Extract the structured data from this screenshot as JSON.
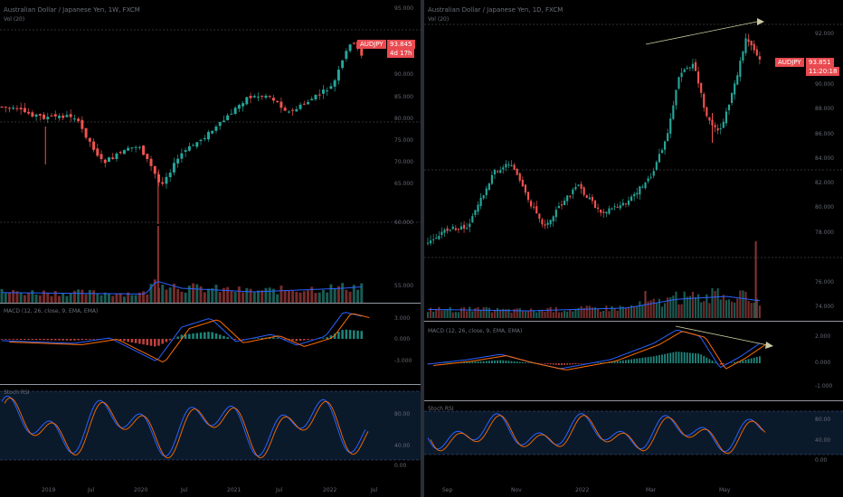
{
  "left": {
    "title": "Australian Dollar / Japanese Yen, 1W, FXCM",
    "subtitle": "Vol (20)",
    "indicators": {
      "macd": "MACD (12, 26, close, 9, EMA, EMA)",
      "stoch": "Stoch RSI"
    },
    "badge": {
      "symbol": "AUDJPY",
      "price": "93.845",
      "countdown": "4d 17h"
    },
    "price_scale": [
      "95.000",
      "90.000",
      "85.000",
      "80.000",
      "75.000",
      "70.000",
      "65.000",
      "60.000",
      "55.000"
    ],
    "time_scale": [
      "2019",
      "Jul",
      "2020",
      "Jul",
      "2021",
      "Jul",
      "2022",
      "Jul"
    ],
    "macd_scale": [
      "3.000",
      "0.000",
      "-3.000"
    ],
    "stoch_scale": [
      "80.00",
      "40.00",
      "0.00"
    ]
  },
  "right": {
    "title": "Australian Dollar / Japanese Yen, 1D, FXCM",
    "subtitle": "Vol (20)",
    "indicators": {
      "macd": "MACD (12, 26, close, 9, EMA, EMA)",
      "stoch": "Stoch RSI"
    },
    "badge": {
      "symbol": "AUDJPY",
      "price": "93.851",
      "countdown": "11:20:18"
    },
    "price_scale": [
      "92.000",
      "90.000",
      "88.000",
      "86.000",
      "84.000",
      "82.000",
      "80.000",
      "78.000",
      "76.000",
      "74.000"
    ],
    "time_scale": [
      "Sep",
      "Nov",
      "2022",
      "Mar",
      "May"
    ],
    "macd_scale": [
      "2.000",
      "0.000",
      "-1.000"
    ],
    "stoch_scale": [
      "80.00",
      "40.00",
      "0.00"
    ]
  },
  "colors": {
    "up": "#26a69a",
    "down": "#ef5350",
    "badge": "#e84a4f",
    "macd": "#2962ff",
    "signal": "#ff6d00",
    "k_line": "#2962ff",
    "d_line": "#ff6d00",
    "vol_ma": "#2962ff",
    "trend": "#c9c9a0"
  }
}
